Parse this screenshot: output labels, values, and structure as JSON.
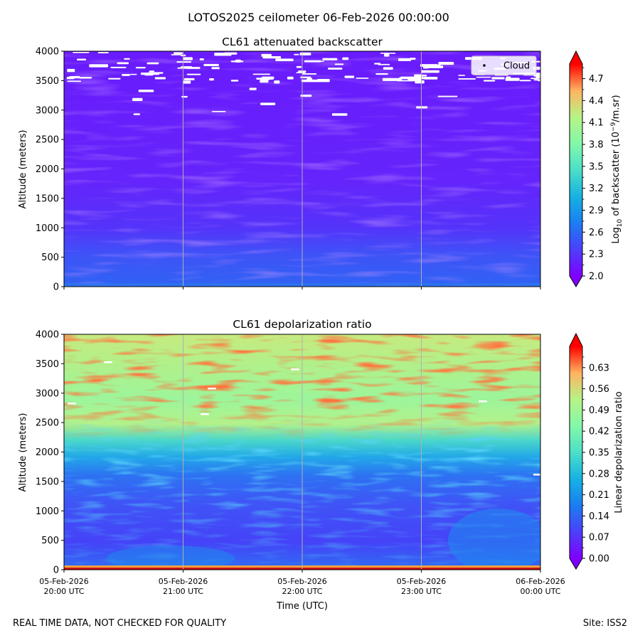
{
  "suptitle": "LOTOS2025 ceilometer 06-Feb-2026 00:00:00",
  "footer_left": "REAL TIME DATA, NOT CHECKED FOR QUALITY",
  "footer_right": "Site: ISS2",
  "xlabel": "Time (UTC)",
  "x_ticks": [
    {
      "date": "05-Feb-2026",
      "time": "20:00 UTC"
    },
    {
      "date": "05-Feb-2026",
      "time": "21:00 UTC"
    },
    {
      "date": "05-Feb-2026",
      "time": "22:00 UTC"
    },
    {
      "date": "05-Feb-2026",
      "time": "23:00 UTC"
    },
    {
      "date": "06-Feb-2026",
      "time": "00:00 UTC"
    }
  ],
  "chart_data": [
    {
      "type": "heatmap",
      "title": "CL61 attenuated backscatter",
      "ylabel": "Altitude (meters)",
      "ylim": [
        0,
        4000
      ],
      "y_ticks": [
        0,
        500,
        1000,
        1500,
        2000,
        2500,
        3000,
        3500,
        4000
      ],
      "x_range_hours": [
        0,
        4
      ],
      "colorbar": {
        "label": "Log10 of backscatter (10^-9/m.sr)",
        "label_main": "Log",
        "label_sub": "10",
        "label_rest": " of backscatter (10",
        "label_sup": "−9",
        "label_end": "/m.sr)",
        "range": [
          2.0,
          4.9
        ],
        "ticks": [
          "2.0",
          "2.3",
          "2.6",
          "2.9",
          "3.2",
          "3.5",
          "3.8",
          "4.1",
          "4.4",
          "4.7"
        ],
        "tick_values": [
          2.0,
          2.3,
          2.6,
          2.9,
          3.2,
          3.5,
          3.8,
          4.1,
          4.4,
          4.7
        ],
        "extend": "both"
      },
      "legend": {
        "entries": [
          "Cloud"
        ],
        "placement": "upper-right"
      },
      "field_description": "Mostly low values (~2.1-2.3) aloft, higher (~2.5-2.8) below ~600 m, white cloud/no-data patches above ~3500 m"
    },
    {
      "type": "heatmap",
      "title": "CL61 depolarization ratio",
      "ylabel": "Altitude (meters)",
      "ylim": [
        0,
        4000
      ],
      "y_ticks": [
        0,
        500,
        1000,
        1500,
        2000,
        2500,
        3000,
        3500,
        4000
      ],
      "x_range_hours": [
        0,
        4
      ],
      "colorbar": {
        "label": "Linear depolarization ratio",
        "range": [
          0.0,
          0.7
        ],
        "ticks": [
          "0.00",
          "0.07",
          "0.14",
          "0.21",
          "0.28",
          "0.35",
          "0.42",
          "0.49",
          "0.56",
          "0.63"
        ],
        "tick_values": [
          0.0,
          0.07,
          0.14,
          0.21,
          0.28,
          0.35,
          0.42,
          0.49,
          0.56,
          0.63
        ],
        "extend": "both"
      },
      "field_description": "Low values (~0.05-0.15) below ~1500 m, mixed ~0.15-0.35 between 1500-2500 m, noisy high values (~0.35-0.65) above 2500 m"
    }
  ]
}
